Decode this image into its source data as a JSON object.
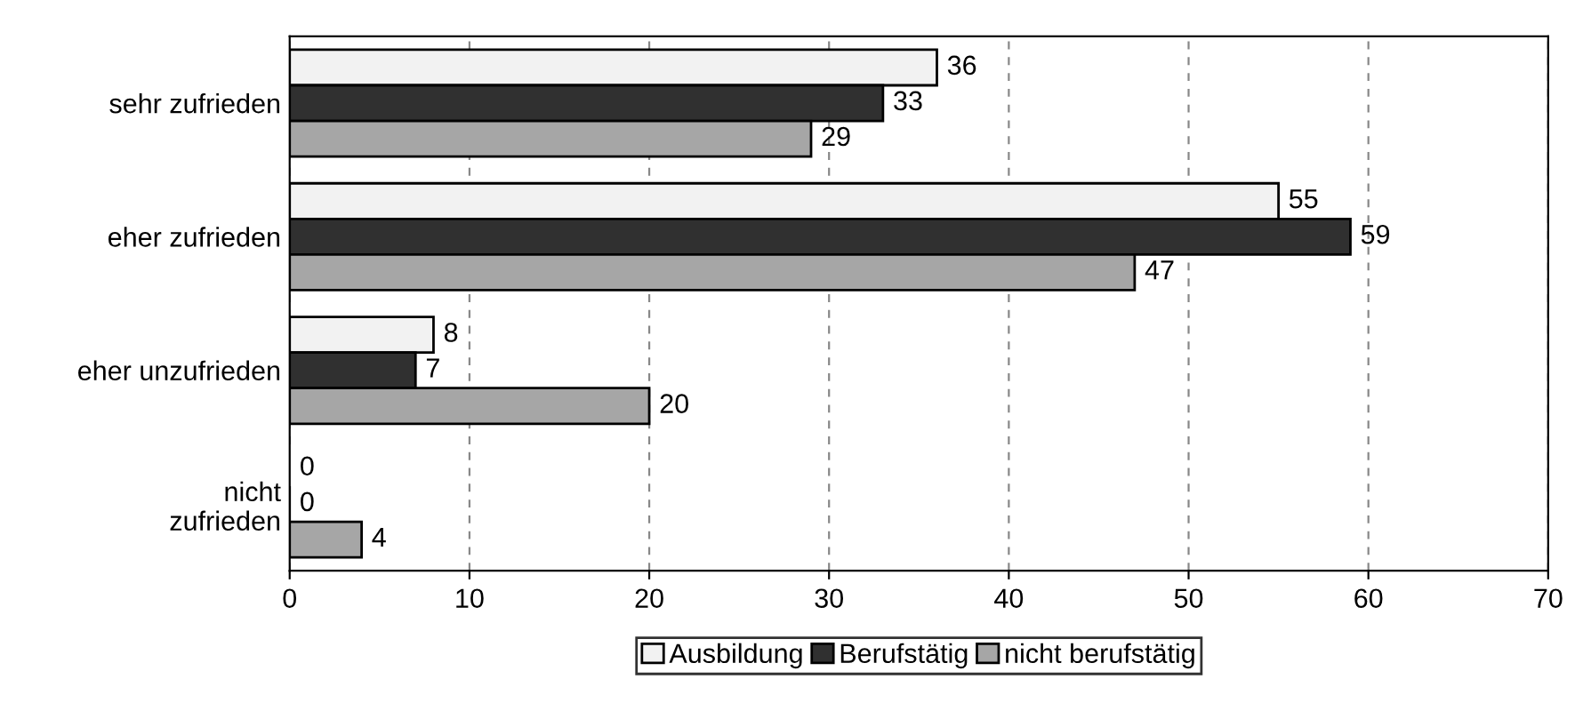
{
  "chart_data": {
    "type": "bar",
    "orientation": "horizontal",
    "categories": [
      "sehr zufrieden",
      "eher zufrieden",
      "eher unzufrieden",
      "nicht\nzufrieden"
    ],
    "series": [
      {
        "name": "Ausbildung",
        "color": "#f2f2f2",
        "values": [
          36,
          55,
          8,
          0
        ]
      },
      {
        "name": "Berufstätig",
        "color": "#303030",
        "values": [
          33,
          59,
          7,
          0
        ]
      },
      {
        "name": "nicht berufstätig",
        "color": "#a6a6a6",
        "values": [
          29,
          47,
          20,
          4
        ]
      }
    ],
    "xlim": [
      0,
      70
    ],
    "xticks": [
      0,
      10,
      20,
      30,
      40,
      50,
      60,
      70
    ],
    "grid": "x",
    "legend": "bottom",
    "data_labels": true
  }
}
